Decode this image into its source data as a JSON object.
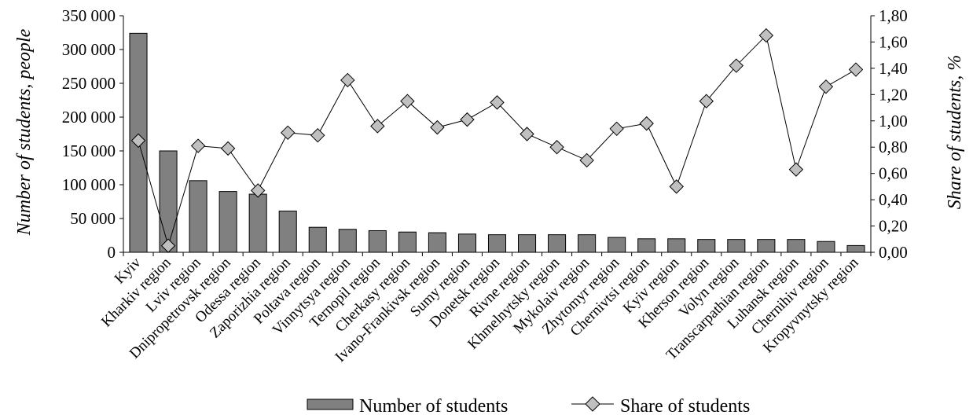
{
  "chart_data": {
    "type": "bar+line",
    "categories": [
      "Kyiv",
      "Kharkiv region",
      "Lviv region",
      "Dnipropetrovsk region",
      "Odessa region",
      "Zaporizhia region",
      "Poltava region",
      "Vinnytsya region",
      "Ternopil region",
      "Cherkasy region",
      "Ivano-Frankivsk region",
      "Sumy region",
      "Donetsk region",
      "Rivne region",
      "Khmelnytsky region",
      "Mykolaiv region",
      "Zhytomyr region",
      "Chernivtsi region",
      "Kyiv region",
      "Kherson region",
      "Volyn region",
      "Transcarpathian region",
      "Luhansk region",
      "Chernihiv region",
      "Kropyvnytsky region"
    ],
    "series": [
      {
        "name": "Number of students",
        "type": "bar",
        "axis": "left",
        "values": [
          324000,
          150000,
          106000,
          90000,
          86000,
          61000,
          37000,
          34000,
          32000,
          30000,
          29000,
          27000,
          26000,
          26000,
          26000,
          26000,
          22000,
          20000,
          20000,
          19000,
          19000,
          19000,
          19000,
          16000,
          10000
        ]
      },
      {
        "name": "Share of students",
        "type": "line",
        "axis": "right",
        "values": [
          0.85,
          0.05,
          0.81,
          0.79,
          0.47,
          0.91,
          0.89,
          1.31,
          0.96,
          1.15,
          0.95,
          1.01,
          1.14,
          0.9,
          0.8,
          0.7,
          0.94,
          0.98,
          0.5,
          1.15,
          1.42,
          1.65,
          0.63,
          1.26,
          1.39
        ]
      }
    ],
    "ylabel": "Number of students, people",
    "y2label": "Share of students, %",
    "ylim": [
      0,
      350000
    ],
    "y2lim": [
      0,
      1.8
    ],
    "yticks": [
      "0",
      "50 000",
      "100 000",
      "150 000",
      "200 000",
      "250 000",
      "300 000",
      "350 000"
    ],
    "y2ticks": [
      "0,00",
      "0,20",
      "0,40",
      "0,60",
      "0,80",
      "1,00",
      "1,20",
      "1,40",
      "1,60",
      "1,80"
    ],
    "legend_position": "bottom-center",
    "colors": {
      "bar": "#808080",
      "bar_border": "#000000",
      "line": "#000000",
      "marker": "#c0c0c0"
    }
  }
}
